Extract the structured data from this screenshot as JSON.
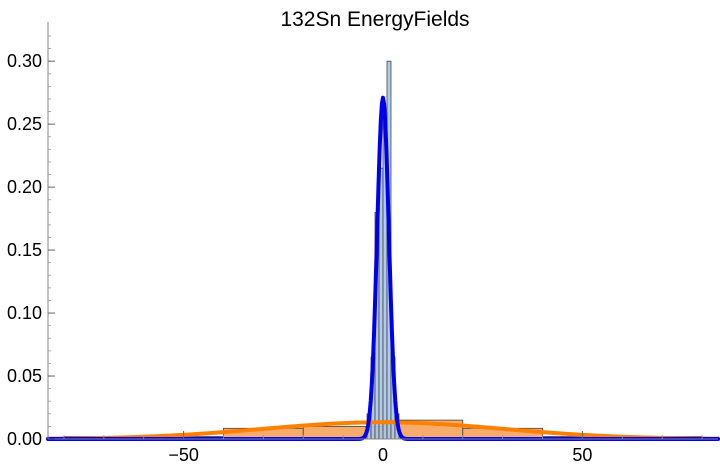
{
  "chart_data": {
    "type": "bar",
    "title": "132Sn EnergyFields",
    "xlabel": "",
    "ylabel": "",
    "xlim": [
      -84,
      84
    ],
    "ylim": [
      0,
      0.32
    ],
    "grid": false,
    "x_ticks": [
      {
        "value": -50,
        "label": "−50"
      },
      {
        "value": 0,
        "label": "0"
      },
      {
        "value": 50,
        "label": "50"
      }
    ],
    "y_ticks": [
      {
        "value": 0.0,
        "label": "0.00"
      },
      {
        "value": 0.05,
        "label": "0.05"
      },
      {
        "value": 0.1,
        "label": "0.10"
      },
      {
        "value": 0.15,
        "label": "0.15"
      },
      {
        "value": 0.2,
        "label": "0.20"
      },
      {
        "value": 0.25,
        "label": "0.25"
      },
      {
        "value": 0.3,
        "label": "0.30"
      }
    ],
    "series": [
      {
        "kind": "histogram",
        "color": "#f7a35c",
        "bins": [
          {
            "x0": -80,
            "x1": -40,
            "y": 0.002
          },
          {
            "x0": -40,
            "x1": -20,
            "y": 0.0085
          },
          {
            "x0": -20,
            "x1": 0,
            "y": 0.01
          },
          {
            "x0": 0,
            "x1": 20,
            "y": 0.015
          },
          {
            "x0": 20,
            "x1": 40,
            "y": 0.0085
          },
          {
            "x0": 40,
            "x1": 80,
            "y": 0.002
          }
        ]
      },
      {
        "kind": "histogram",
        "color": "#a9c6e8",
        "bins": [
          {
            "x0": -4,
            "x1": -3,
            "y": 0.02
          },
          {
            "x0": -3,
            "x1": -2,
            "y": 0.065
          },
          {
            "x0": -2,
            "x1": -1,
            "y": 0.18
          },
          {
            "x0": -1,
            "x1": 0,
            "y": 0.215
          },
          {
            "x0": 0,
            "x1": 1,
            "y": 0.255
          },
          {
            "x0": 1,
            "x1": 2,
            "y": 0.3
          },
          {
            "x0": 2,
            "x1": 3,
            "y": 0.065
          },
          {
            "x0": 3,
            "x1": 4,
            "y": 0.02
          }
        ]
      },
      {
        "kind": "curve",
        "color": "#ff8000",
        "distribution": "normal",
        "mean": 0,
        "sigma": 30,
        "peak": 0.0133
      },
      {
        "kind": "curve",
        "color": "#0000ee",
        "distribution": "normal",
        "mean": 0,
        "sigma": 1.47,
        "peak": 0.271
      }
    ]
  }
}
